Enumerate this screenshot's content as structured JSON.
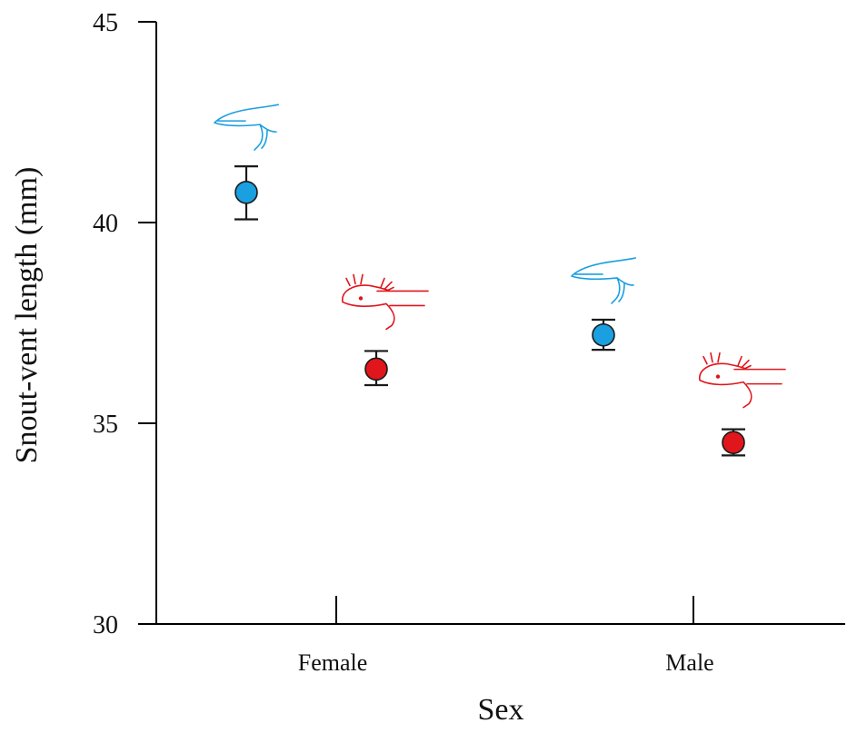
{
  "chart_data": {
    "type": "scatter",
    "categories": [
      "Female",
      "Male"
    ],
    "xlabel": "Sex",
    "ylabel": "Snout-vent length (mm)",
    "ylim": [
      30,
      45
    ],
    "yticks": [
      "30",
      "35",
      "40",
      "45"
    ],
    "grid": false,
    "legend": "none",
    "series": [
      {
        "color": "#1a9fe0",
        "icon": "metamorphosed-salamander-icon",
        "values": [
          40.75,
          37.2
        ],
        "err_low": [
          40.08,
          36.83
        ],
        "err_high": [
          41.4,
          37.58
        ]
      },
      {
        "color": "#e0161c",
        "icon": "axolotl-larva-icon",
        "values": [
          36.35,
          34.52
        ],
        "err_low": [
          35.95,
          34.2
        ],
        "err_high": [
          36.8,
          34.85
        ]
      }
    ]
  }
}
